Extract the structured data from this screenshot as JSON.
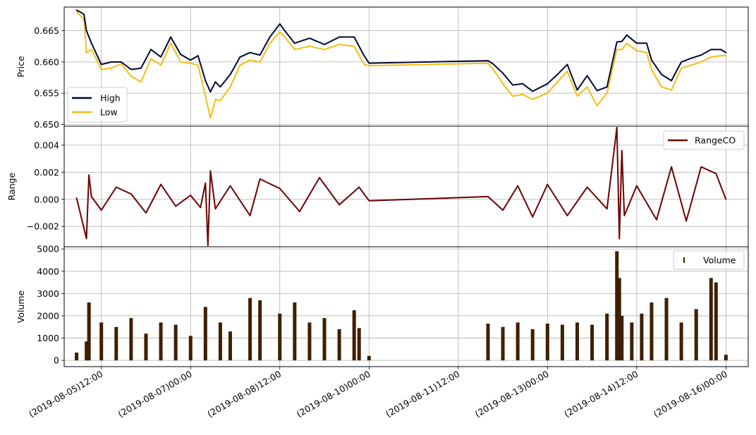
{
  "colors": {
    "high": "#000a33",
    "low": "#f5bd14",
    "range": "#6b0000",
    "volume": "#3f1f00",
    "grid": "#b0b0b0",
    "legend_border": "#cccccc"
  },
  "x_ticks": [
    "(2019-08-05)12:00",
    "(2019-08-07)00:00",
    "(2019-08-08)12:00",
    "(2019-08-10)00:00",
    "(2019-08-11)12:00",
    "(2019-08-13)00:00",
    "(2019-08-14)12:00",
    "(2019-08-16)00:00"
  ],
  "chart_data": [
    {
      "type": "line",
      "ylabel": "Price",
      "xlim": [
        "2019-08-04 21:00",
        "2019-08-16 09:00"
      ],
      "ylim": [
        0.6497,
        0.6688
      ],
      "yticks": [
        "0.650",
        "0.655",
        "0.660",
        "0.665"
      ],
      "ytick_values": [
        0.65,
        0.655,
        0.66,
        0.665
      ],
      "grid": true,
      "legend_position": "lower-left",
      "x": [
        "2019-08-05 02:00",
        "2019-08-05 04:00",
        "2019-08-05 05:00",
        "2019-08-05 06:00",
        "2019-08-05 08:00",
        "2019-08-05 12:00",
        "2019-08-05 16:00",
        "2019-08-05 20:00",
        "2019-08-06 00:00",
        "2019-08-06 04:00",
        "2019-08-06 08:00",
        "2019-08-06 12:00",
        "2019-08-06 16:00",
        "2019-08-06 20:00",
        "2019-08-07 00:00",
        "2019-08-07 03:00",
        "2019-08-07 06:00",
        "2019-08-07 08:00",
        "2019-08-07 10:00",
        "2019-08-07 12:00",
        "2019-08-07 16:00",
        "2019-08-07 20:00",
        "2019-08-08 00:00",
        "2019-08-08 04:00",
        "2019-08-08 08:00",
        "2019-08-08 12:00",
        "2019-08-08 14:00",
        "2019-08-08 18:00",
        "2019-08-09 00:00",
        "2019-08-09 06:00",
        "2019-08-09 12:00",
        "2019-08-09 18:00",
        "2019-08-09 22:00",
        "2019-08-10 00:00",
        "2019-08-12 00:00",
        "2019-08-12 02:00",
        "2019-08-12 06:00",
        "2019-08-12 10:00",
        "2019-08-12 14:00",
        "2019-08-12 18:00",
        "2019-08-13 00:00",
        "2019-08-13 04:00",
        "2019-08-13 08:00",
        "2019-08-13 12:00",
        "2019-08-13 16:00",
        "2019-08-13 20:00",
        "2019-08-14 00:00",
        "2019-08-14 04:00",
        "2019-08-14 06:00",
        "2019-08-14 08:00",
        "2019-08-14 12:00",
        "2019-08-14 16:00",
        "2019-08-14 18:00",
        "2019-08-14 22:00",
        "2019-08-15 02:00",
        "2019-08-15 06:00",
        "2019-08-15 10:00",
        "2019-08-15 14:00",
        "2019-08-15 18:00",
        "2019-08-15 22:00",
        "2019-08-16 00:00"
      ],
      "series": [
        {
          "name": "High",
          "values": [
            0.6683,
            0.6679,
            0.6676,
            0.665,
            0.663,
            0.6596,
            0.66,
            0.66,
            0.6588,
            0.659,
            0.662,
            0.6608,
            0.664,
            0.6612,
            0.6603,
            0.661,
            0.657,
            0.6552,
            0.6568,
            0.656,
            0.658,
            0.6608,
            0.6615,
            0.6611,
            0.664,
            0.6661,
            0.665,
            0.663,
            0.6638,
            0.6628,
            0.664,
            0.664,
            0.661,
            0.6598,
            0.6602,
            0.6597,
            0.6582,
            0.6563,
            0.6565,
            0.6553,
            0.6565,
            0.658,
            0.6596,
            0.6555,
            0.6578,
            0.6554,
            0.656,
            0.6632,
            0.6633,
            0.6643,
            0.663,
            0.663,
            0.6603,
            0.658,
            0.657,
            0.66,
            0.6606,
            0.6611,
            0.662,
            0.662,
            0.6615
          ]
        },
        {
          "name": "Low",
          "values": [
            0.6681,
            0.6672,
            0.6668,
            0.6615,
            0.662,
            0.6588,
            0.659,
            0.6597,
            0.6577,
            0.6568,
            0.6605,
            0.6595,
            0.663,
            0.66,
            0.6598,
            0.6595,
            0.6545,
            0.651,
            0.654,
            0.6538,
            0.656,
            0.6595,
            0.6603,
            0.66,
            0.663,
            0.6648,
            0.664,
            0.662,
            0.6625,
            0.662,
            0.6628,
            0.6625,
            0.6596,
            0.6594,
            0.6598,
            0.6589,
            0.6565,
            0.6545,
            0.6548,
            0.654,
            0.655,
            0.6568,
            0.6585,
            0.6545,
            0.656,
            0.653,
            0.655,
            0.662,
            0.662,
            0.663,
            0.6618,
            0.6615,
            0.6588,
            0.656,
            0.6555,
            0.659,
            0.6595,
            0.66,
            0.6608,
            0.661,
            0.661
          ]
        }
      ]
    },
    {
      "type": "line",
      "ylabel": "Range",
      "xlim": [
        "2019-08-04 21:00",
        "2019-08-16 09:00"
      ],
      "ylim": [
        -0.0035,
        0.0054
      ],
      "yticks": [
        "−0.002",
        "0.000",
        "0.002",
        "0.004"
      ],
      "ytick_values": [
        -0.002,
        0.0,
        0.002,
        0.004
      ],
      "grid": true,
      "legend_position": "top-right",
      "x": [
        "2019-08-05 02:00",
        "2019-08-05 06:00",
        "2019-08-05 07:00",
        "2019-08-05 08:00",
        "2019-08-05 12:00",
        "2019-08-05 18:00",
        "2019-08-06 00:00",
        "2019-08-06 06:00",
        "2019-08-06 12:00",
        "2019-08-06 18:00",
        "2019-08-07 00:00",
        "2019-08-07 04:00",
        "2019-08-07 06:00",
        "2019-08-07 07:00",
        "2019-08-07 08:00",
        "2019-08-07 10:00",
        "2019-08-07 16:00",
        "2019-08-08 00:00",
        "2019-08-08 04:00",
        "2019-08-08 12:00",
        "2019-08-08 20:00",
        "2019-08-09 04:00",
        "2019-08-09 12:00",
        "2019-08-09 20:00",
        "2019-08-10 00:00",
        "2019-08-12 00:00",
        "2019-08-12 06:00",
        "2019-08-12 12:00",
        "2019-08-12 18:00",
        "2019-08-13 00:00",
        "2019-08-13 08:00",
        "2019-08-13 16:00",
        "2019-08-14 00:00",
        "2019-08-14 04:00",
        "2019-08-14 05:00",
        "2019-08-14 06:00",
        "2019-08-14 07:00",
        "2019-08-14 12:00",
        "2019-08-14 20:00",
        "2019-08-15 02:00",
        "2019-08-15 08:00",
        "2019-08-15 14:00",
        "2019-08-15 20:00",
        "2019-08-16 00:00"
      ],
      "series": [
        {
          "name": "RangeCO",
          "values": [
            0.0001,
            -0.0029,
            0.0018,
            0.0002,
            -0.0008,
            0.0009,
            0.0004,
            -0.001,
            0.0011,
            -0.0005,
            0.0003,
            -0.0006,
            0.0012,
            -0.0034,
            0.0021,
            -0.0007,
            0.001,
            -0.0012,
            0.0015,
            0.0008,
            -0.0009,
            0.0016,
            -0.0004,
            0.0009,
            -0.0001,
            0.0002,
            -0.0008,
            0.001,
            -0.0013,
            0.0011,
            -0.0012,
            0.0009,
            -0.0007,
            0.0053,
            -0.0029,
            0.0036,
            -0.0012,
            0.001,
            -0.0015,
            0.0024,
            -0.0016,
            0.0024,
            0.0019,
            0.0
          ]
        }
      ]
    },
    {
      "type": "bar",
      "ylabel": "Volume",
      "xlim": [
        "2019-08-04 21:00",
        "2019-08-16 09:00"
      ],
      "ylim": [
        -280,
        5100
      ],
      "yticks": [
        "0",
        "1000",
        "2000",
        "3000",
        "4000",
        "5000"
      ],
      "ytick_values": [
        0,
        1000,
        2000,
        3000,
        4000,
        5000
      ],
      "grid": true,
      "legend_position": "top-right",
      "x": [
        "2019-08-05 02:00",
        "2019-08-05 06:00",
        "2019-08-05 07:00",
        "2019-08-05 12:00",
        "2019-08-05 18:00",
        "2019-08-06 00:00",
        "2019-08-06 06:00",
        "2019-08-06 12:00",
        "2019-08-06 18:00",
        "2019-08-07 00:00",
        "2019-08-07 06:00",
        "2019-08-07 12:00",
        "2019-08-07 16:00",
        "2019-08-08 00:00",
        "2019-08-08 04:00",
        "2019-08-08 12:00",
        "2019-08-08 18:00",
        "2019-08-09 00:00",
        "2019-08-09 06:00",
        "2019-08-09 12:00",
        "2019-08-09 18:00",
        "2019-08-09 20:00",
        "2019-08-10 00:00",
        "2019-08-12 00:00",
        "2019-08-12 06:00",
        "2019-08-12 12:00",
        "2019-08-12 18:00",
        "2019-08-13 00:00",
        "2019-08-13 06:00",
        "2019-08-13 12:00",
        "2019-08-13 18:00",
        "2019-08-14 00:00",
        "2019-08-14 04:00",
        "2019-08-14 05:00",
        "2019-08-14 06:00",
        "2019-08-14 10:00",
        "2019-08-14 14:00",
        "2019-08-14 18:00",
        "2019-08-15 00:00",
        "2019-08-15 06:00",
        "2019-08-15 12:00",
        "2019-08-15 18:00",
        "2019-08-15 20:00",
        "2019-08-16 00:00"
      ],
      "series": [
        {
          "name": "Volume",
          "values": [
            350,
            850,
            2600,
            1700,
            1500,
            1900,
            1200,
            1700,
            1600,
            1100,
            2400,
            1700,
            1300,
            2800,
            2700,
            2100,
            2600,
            1700,
            1900,
            1400,
            2250,
            1450,
            200,
            1650,
            1500,
            1700,
            1400,
            1650,
            1600,
            1700,
            1600,
            2100,
            4900,
            3700,
            2000,
            1700,
            2100,
            2600,
            2800,
            1700,
            2300,
            3700,
            3500,
            250
          ]
        }
      ]
    }
  ]
}
